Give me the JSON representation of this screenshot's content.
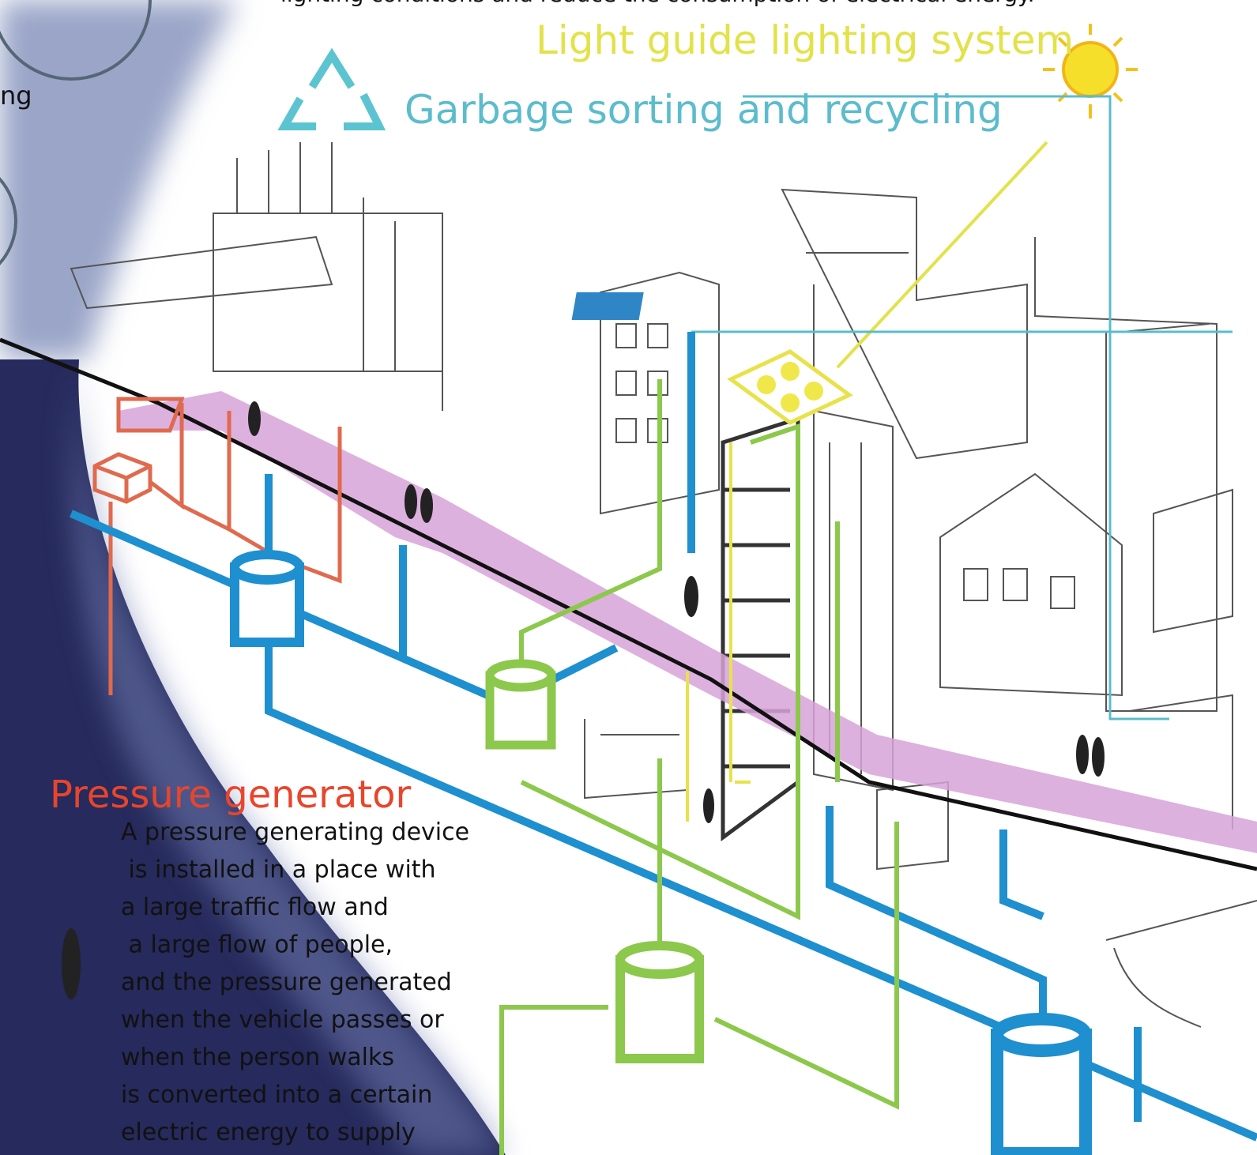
{
  "header": {
    "top_text": "lighting conditions and reduce the consumption of electrical energy.",
    "side_fragment": "ng"
  },
  "labels": {
    "light_guide": "Light guide lighting system",
    "garbage": "Garbage sorting and recycling"
  },
  "pressure": {
    "title": "Pressure generator",
    "lines": [
      "A pressure generating device",
      " is installed in a place with",
      "a large traffic flow and",
      " a large flow of people,",
      "and the pressure generated",
      "when the vehicle passes or",
      "when the person walks",
      "is converted into a certain",
      "electric energy to supply"
    ]
  }
}
